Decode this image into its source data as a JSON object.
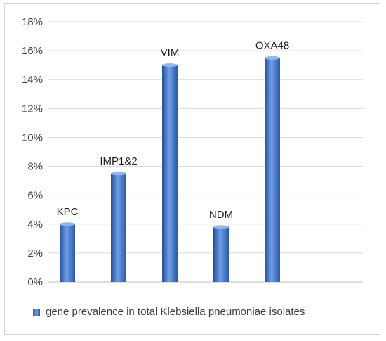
{
  "chart_data": {
    "type": "bar",
    "categories": [
      "KPC",
      "IMP1&2",
      "VIM",
      "NDM",
      "OXA48"
    ],
    "series": [
      {
        "name": "gene prevalence in total Klebsiella pneumoniae isolates",
        "values": [
          4.0,
          7.5,
          15.0,
          3.8,
          15.5
        ]
      }
    ],
    "ylim": [
      0,
      18
    ],
    "yticks": [
      0,
      2,
      4,
      6,
      8,
      10,
      12,
      14,
      16,
      18
    ],
    "ytick_labels": [
      "0%",
      "2%",
      "4%",
      "6%",
      "8%",
      "10%",
      "12%",
      "14%",
      "16%",
      "18%"
    ],
    "grid": true,
    "legend_position": "bottom",
    "bar_color": "#3a6fc4"
  }
}
